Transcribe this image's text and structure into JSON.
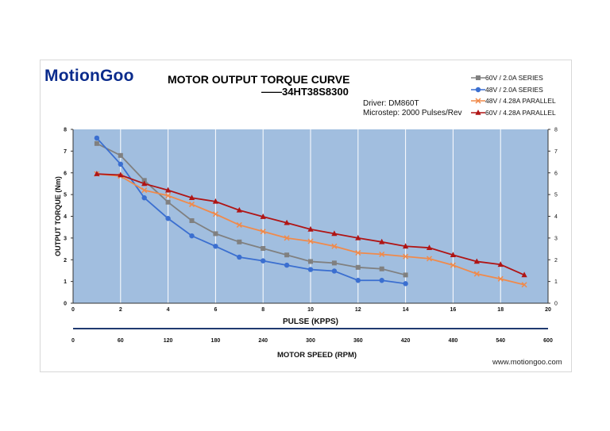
{
  "header": {
    "brand": "MotionGoo",
    "title": "MOTOR OUTPUT TORQUE CURVE",
    "subtitle": "——34HT38S8300",
    "driver": "Driver: DM860T",
    "microstep": "Microstep: 2000 Pulses/Rev"
  },
  "footer": {
    "url": "www.motiongoo.com"
  },
  "colors": {
    "plot_bg": "#a1bedf",
    "grid": "#ffffff",
    "axis": "#1f3a70"
  },
  "chart_data": {
    "type": "line",
    "xlabel": "PULSE (KPPS)",
    "ylabel": "OUTPUT TORQUE (Nm)",
    "x2label": "MOTOR SPEED (RPM)",
    "xlim": [
      0,
      20
    ],
    "ylim": [
      0,
      8
    ],
    "x_ticks": [
      "0",
      "2",
      "4",
      "6",
      "8",
      "10",
      "12",
      "14",
      "16",
      "18",
      "20"
    ],
    "y_ticks": [
      "0",
      "1",
      "2",
      "3",
      "4",
      "5",
      "6",
      "7",
      "8"
    ],
    "y_ticks_right": [
      "0",
      "1",
      "2",
      "3",
      "4",
      "5",
      "6",
      "7",
      "8"
    ],
    "rpm_ticks": [
      "0",
      "60",
      "120",
      "180",
      "240",
      "300",
      "360",
      "420",
      "480",
      "540",
      "600"
    ],
    "grid": "vertical",
    "legend_position": "top-right",
    "series": [
      {
        "name": "60V / 2.0A SERIES",
        "color": "#808080",
        "marker": "square",
        "x": [
          1,
          2,
          3,
          4,
          5,
          6,
          7,
          8,
          9,
          10,
          11,
          12,
          13,
          14
        ],
        "y": [
          7.35,
          6.8,
          5.65,
          4.65,
          3.8,
          3.2,
          2.82,
          2.52,
          2.22,
          1.92,
          1.85,
          1.65,
          1.58,
          1.3
        ]
      },
      {
        "name": "48V / 2.0A SERIES",
        "color": "#3b6fd0",
        "marker": "circle",
        "x": [
          1,
          2,
          3,
          4,
          5,
          6,
          7,
          8,
          9,
          10,
          11,
          12,
          13,
          14
        ],
        "y": [
          7.6,
          6.4,
          4.85,
          3.9,
          3.1,
          2.62,
          2.12,
          1.95,
          1.75,
          1.55,
          1.48,
          1.05,
          1.05,
          0.9
        ]
      },
      {
        "name": "48V / 4.28A PARALLEL",
        "color": "#f08a4b",
        "marker": "x",
        "x": [
          1,
          2,
          3,
          4,
          5,
          6,
          7,
          8,
          9,
          10,
          11,
          12,
          13,
          14,
          15,
          16,
          17,
          18,
          19
        ],
        "y": [
          5.95,
          5.85,
          5.2,
          4.95,
          4.55,
          4.1,
          3.6,
          3.3,
          3.0,
          2.85,
          2.62,
          2.32,
          2.25,
          2.15,
          2.05,
          1.75,
          1.35,
          1.12,
          0.85
        ]
      },
      {
        "name": "60V / 4.28A PARALLEL",
        "color": "#b01515",
        "marker": "triangle",
        "x": [
          1,
          2,
          3,
          4,
          5,
          6,
          7,
          8,
          9,
          10,
          11,
          12,
          13,
          14,
          15,
          16,
          17,
          18,
          19
        ],
        "y": [
          5.95,
          5.9,
          5.5,
          5.2,
          4.85,
          4.68,
          4.28,
          3.98,
          3.7,
          3.4,
          3.2,
          3.0,
          2.82,
          2.62,
          2.55,
          2.22,
          1.92,
          1.78,
          1.3
        ]
      }
    ]
  }
}
